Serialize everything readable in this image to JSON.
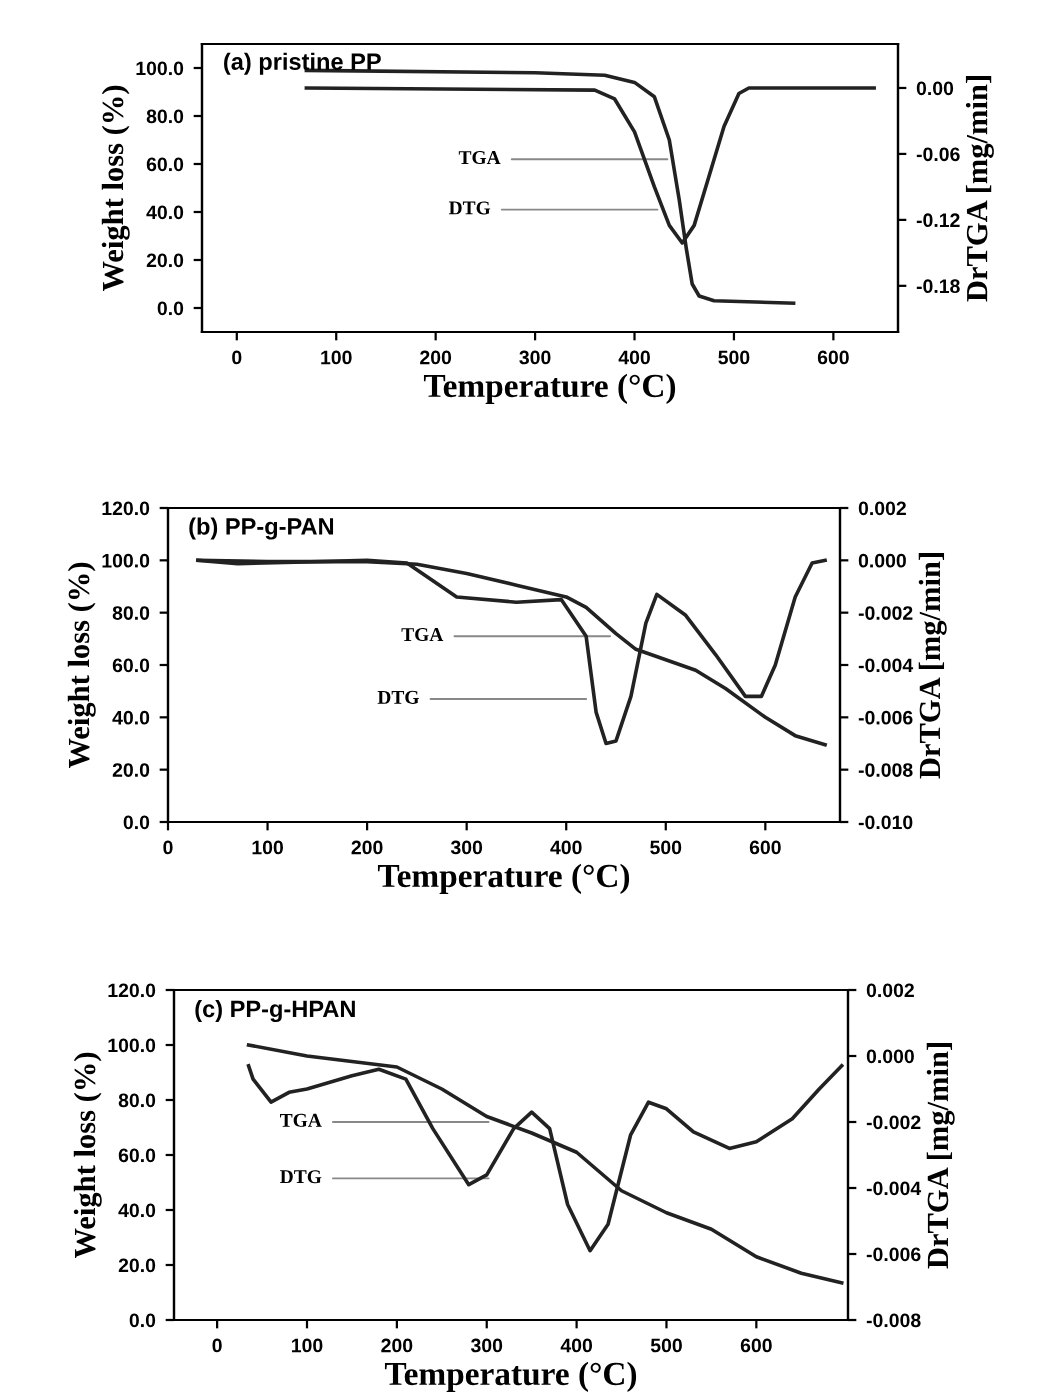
{
  "chart_data": [
    {
      "type": "line",
      "title": "(a) pristine PP",
      "xlabel": "Temperature (°C)",
      "ylabel": "Weight loss (%)",
      "y2label": "DrTGA [mg/min]",
      "xlim": [
        -35,
        665
      ],
      "xticks": [
        0,
        100,
        200,
        300,
        400,
        500,
        600
      ],
      "ylim": [
        -10,
        110
      ],
      "yticks": [
        {
          "value": 0,
          "label": "0.0"
        },
        {
          "value": 20,
          "label": "20.0"
        },
        {
          "value": 40,
          "label": "40.0"
        },
        {
          "value": 60,
          "label": "60.0"
        },
        {
          "value": 80,
          "label": "80.0"
        },
        {
          "value": 100,
          "label": "100.0"
        }
      ],
      "y2lim": [
        -0.222,
        0.04
      ],
      "y2ticks": [
        {
          "value": 0,
          "label": "0.00"
        },
        {
          "value": -0.06,
          "label": "-0.06"
        },
        {
          "value": -0.12,
          "label": "-0.12"
        },
        {
          "value": -0.18,
          "label": "-0.18"
        }
      ],
      "series": [
        {
          "color": "#222222",
          "axis": "y",
          "x": [
            70,
            300,
            370,
            400,
            420,
            435,
            445,
            452,
            458,
            465,
            480,
            560
          ],
          "values": [
            99,
            98,
            97,
            94,
            88,
            70,
            45,
            25,
            10,
            5,
            3,
            2
          ]
        },
        {
          "color": "#222222",
          "axis": "y2",
          "x": [
            70,
            360,
            380,
            400,
            420,
            435,
            448,
            460,
            475,
            490,
            505,
            515,
            641
          ],
          "values": [
            0.0,
            -0.002,
            -0.01,
            -0.04,
            -0.09,
            -0.125,
            -0.141,
            -0.125,
            -0.08,
            -0.035,
            -0.005,
            0.0,
            0.0
          ]
        }
      ],
      "annotations": [
        {
          "text": "TGA",
          "x": 433,
          "y": 62
        },
        {
          "text": "DTG",
          "x": 423,
          "y": 41
        }
      ]
    },
    {
      "type": "line",
      "title": "(b) PP-g-PAN",
      "xlabel": "Temperature (°C)",
      "ylabel": "Weight loss (%)",
      "y2label": "DrTGA [mg/min]",
      "xlim": [
        0,
        675
      ],
      "xticks": [
        0,
        100,
        200,
        300,
        400,
        500,
        600
      ],
      "ylim": [
        0,
        120
      ],
      "yticks": [
        {
          "value": 0,
          "label": "0.0"
        },
        {
          "value": 20,
          "label": "20.0"
        },
        {
          "value": 40,
          "label": "40.0"
        },
        {
          "value": 60,
          "label": "60.0"
        },
        {
          "value": 80,
          "label": "80.0"
        },
        {
          "value": 100,
          "label": "100.0"
        },
        {
          "value": 120,
          "label": "120.0"
        }
      ],
      "y2lim": [
        -0.01,
        0.002
      ],
      "y2ticks": [
        {
          "value": 0.002,
          "label": "0.002"
        },
        {
          "value": 0,
          "label": "0.000"
        },
        {
          "value": -0.002,
          "label": "-0.002"
        },
        {
          "value": -0.004,
          "label": "-0.004"
        },
        {
          "value": -0.006,
          "label": "-0.006"
        },
        {
          "value": -0.008,
          "label": "-0.008"
        },
        {
          "value": -0.01,
          "label": "-0.010"
        }
      ],
      "series": [
        {
          "color": "#222222",
          "axis": "y",
          "x": [
            30,
            100,
            200,
            250,
            300,
            350,
            400,
            420,
            450,
            470,
            500,
            530,
            560,
            600,
            630,
            660
          ],
          "values": [
            100,
            99.5,
            99.5,
            98.5,
            95,
            90.5,
            86,
            82,
            72,
            66,
            62,
            58,
            51,
            40,
            33,
            29.5
          ]
        },
        {
          "color": "#222222",
          "axis": "y2",
          "x": [
            30,
            70,
            200,
            240,
            290,
            350,
            395,
            420,
            430,
            440,
            450,
            465,
            480,
            491,
            520,
            550,
            580,
            596,
            610,
            630,
            647,
            660
          ],
          "values": [
            0,
            -0.00013,
            0,
            -0.0001,
            -0.0014,
            -0.0016,
            -0.0015,
            -0.0029,
            -0.0058,
            -0.007,
            -0.0069,
            -0.0052,
            -0.0024,
            -0.0013,
            -0.0021,
            -0.0036,
            -0.0052,
            -0.0052,
            -0.004,
            -0.0014,
            -0.0001,
            0
          ]
        }
      ],
      "annotations": [
        {
          "text": "TGA",
          "x": 444,
          "y": 71
        },
        {
          "text": "DTG",
          "x": 420,
          "y": 47
        }
      ]
    },
    {
      "type": "line",
      "title": "(c) PP-g-HPAN",
      "xlabel": "Temperature (°C)",
      "ylabel": "Weight loss (%)",
      "y2label": "DrTGA [mg/min]",
      "xlim": [
        -48,
        702
      ],
      "xticks": [
        0,
        100,
        200,
        300,
        400,
        500,
        600
      ],
      "ylim": [
        0,
        120
      ],
      "yticks": [
        {
          "value": 0,
          "label": "0.0"
        },
        {
          "value": 20,
          "label": "20.0"
        },
        {
          "value": 40,
          "label": "40.0"
        },
        {
          "value": 60,
          "label": "60.0"
        },
        {
          "value": 80,
          "label": "80.0"
        },
        {
          "value": 100,
          "label": "100.0"
        },
        {
          "value": 120,
          "label": "120.0"
        }
      ],
      "y2lim": [
        -0.008,
        0.002
      ],
      "y2ticks": [
        {
          "value": 0.002,
          "label": "0.002"
        },
        {
          "value": 0,
          "label": "0.000"
        },
        {
          "value": -0.002,
          "label": "-0.002"
        },
        {
          "value": -0.004,
          "label": "-0.004"
        },
        {
          "value": -0.006,
          "label": "-0.006"
        },
        {
          "value": -0.008,
          "label": "-0.008"
        }
      ],
      "series": [
        {
          "color": "#222222",
          "axis": "y",
          "x": [
            35,
            100,
            200,
            250,
            300,
            350,
            400,
            450,
            500,
            550,
            600,
            650,
            695
          ],
          "values": [
            100,
            96,
            92,
            84,
            74,
            68,
            61,
            47,
            39,
            33,
            23,
            17,
            13.5
          ]
        },
        {
          "color": "#222222",
          "axis": "y2",
          "x": [
            35,
            40,
            60,
            80,
            100,
            150,
            180,
            210,
            240,
            280,
            300,
            330,
            350,
            370,
            390,
            415,
            435,
            460,
            480,
            500,
            530,
            570,
            600,
            640,
            670,
            695
          ],
          "values": [
            -0.0003,
            -0.0007,
            -0.0014,
            -0.0011,
            -0.001,
            -0.0006,
            -0.0004,
            -0.0007,
            -0.0022,
            -0.0039,
            -0.0036,
            -0.0022,
            -0.0017,
            -0.0022,
            -0.0045,
            -0.0059,
            -0.0051,
            -0.0024,
            -0.0014,
            -0.0016,
            -0.0023,
            -0.0028,
            -0.0026,
            -0.0019,
            -0.001,
            -0.0003
          ]
        }
      ],
      "annotations": [
        {
          "text": "TGA",
          "x": 302,
          "y": 72
        },
        {
          "text": "DTG",
          "x": 302,
          "y": 51.5
        }
      ]
    }
  ]
}
